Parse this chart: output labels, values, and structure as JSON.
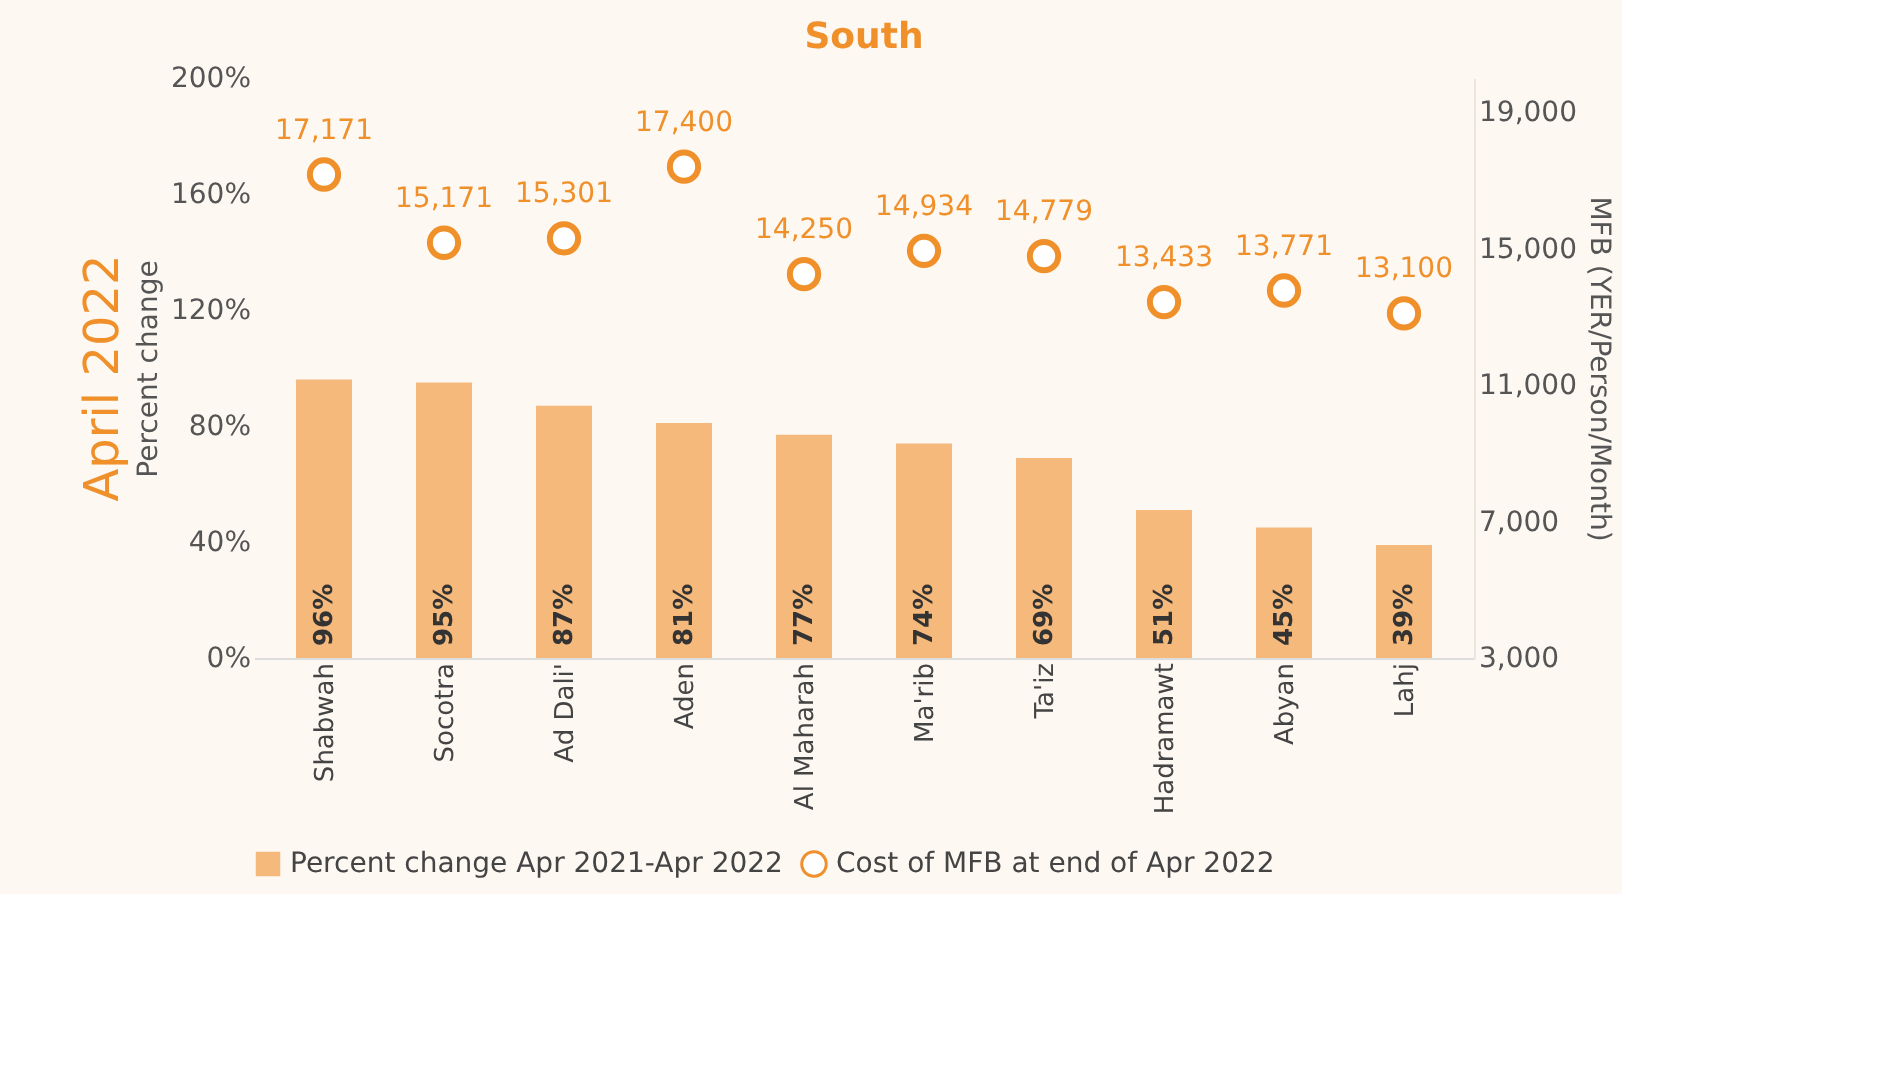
{
  "chart_data": {
    "type": "bar",
    "title": "South",
    "ylabel": "Percent change",
    "y2label": "MFB (YER/Person/Month)",
    "annotations": [
      "April 2022"
    ],
    "categories": [
      "Shabwah",
      "Socotra",
      "Ad Dali'",
      "Aden",
      "Al Maharah",
      "Ma'rib",
      "Ta'iz",
      "Hadramawt",
      "Abyan",
      "Lahj"
    ],
    "series": [
      {
        "name": "Percent change Apr 2021-Apr 2022",
        "color": "#f6b97c",
        "values": [
          96,
          95,
          87,
          81,
          77,
          74,
          69,
          51,
          45,
          39
        ],
        "value_labels": [
          "96%",
          "95%",
          "87%",
          "81%",
          "77%",
          "74%",
          "69%",
          "51%",
          "45%",
          "39%"
        ]
      },
      {
        "name": "Cost of MFB at end of Apr 2022",
        "type": "scatter",
        "axis": "y2",
        "color": "#f0902a",
        "marker": "circle",
        "values": [
          17171,
          15171,
          15301,
          17400,
          14250,
          14934,
          14779,
          13433,
          13771,
          13100
        ],
        "value_labels": [
          "17,171",
          "15,171",
          "15,301",
          "17,400",
          "14,250",
          "14,934",
          "14,779",
          "13,433",
          "13,771",
          "13,100"
        ]
      }
    ],
    "ylim": [
      0,
      200
    ],
    "yticks": [
      {
        "value": 0,
        "label": "0%"
      },
      {
        "value": 40,
        "label": "40%"
      },
      {
        "value": 80,
        "label": "80%"
      },
      {
        "value": 120,
        "label": "120%"
      },
      {
        "value": 160,
        "label": "160%"
      },
      {
        "value": 200,
        "label": "200%"
      }
    ],
    "y2lim": [
      3000,
      20000
    ],
    "y2ticks": [
      {
        "value": 3000,
        "label": "3,000"
      },
      {
        "value": 7000,
        "label": "7,000"
      },
      {
        "value": 11000,
        "label": "11,000"
      },
      {
        "value": 15000,
        "label": "15,000"
      },
      {
        "value": 19000,
        "label": "19,000"
      }
    ],
    "grid": false,
    "legend": "bottom"
  }
}
